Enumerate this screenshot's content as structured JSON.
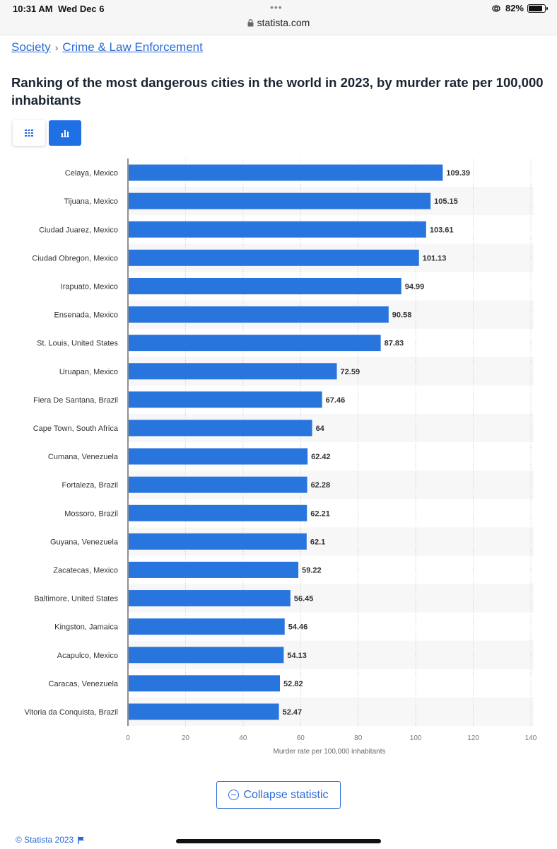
{
  "status_bar": {
    "time": "10:31 AM",
    "date": "Wed Dec 6",
    "url": "statista.com",
    "battery": "82%"
  },
  "breadcrumb": {
    "items": [
      "Society",
      "Crime & Law Enforcement"
    ],
    "separator": "›"
  },
  "title": "Ranking of the most dangerous cities in the world in 2023, by murder rate per 100,000 inhabitants",
  "view_toggle": {
    "options": [
      "table-icon",
      "bar-chart-icon"
    ],
    "active": "bar-chart-icon"
  },
  "chart_data": {
    "type": "bar",
    "orientation": "horizontal",
    "categories": [
      "Celaya, Mexico",
      "Tijuana, Mexico",
      "Ciudad Juarez, Mexico",
      "Ciudad Obregon, Mexico",
      "Irapuato, Mexico",
      "Ensenada, Mexico",
      "St. Louis, United States",
      "Uruapan, Mexico",
      "Fiera De Santana, Brazil",
      "Cape Town, South Africa",
      "Cumana, Venezuela",
      "Fortaleza, Brazil",
      "Mossoro, Brazil",
      "Guyana, Venezuela",
      "Zacatecas, Mexico",
      "Baltimore, United States",
      "Kingston, Jamaica",
      "Acapulco, Mexico",
      "Caracas, Venezuela",
      "Vitoria da Conquista, Brazil"
    ],
    "values": [
      109.39,
      105.15,
      103.61,
      101.13,
      94.99,
      90.58,
      87.83,
      72.59,
      67.46,
      64,
      62.42,
      62.28,
      62.21,
      62.1,
      59.22,
      56.45,
      54.46,
      54.13,
      52.82,
      52.47
    ],
    "value_labels": [
      "109.39",
      "105.15",
      "103.61",
      "101.13",
      "94.99",
      "90.58",
      "87.83",
      "72.59",
      "67.46",
      "64",
      "62.42",
      "62.28",
      "62.21",
      "62.1",
      "59.22",
      "56.45",
      "54.46",
      "54.13",
      "52.82",
      "52.47"
    ],
    "xlabel": "Murder rate per 100,000 inhabitants",
    "xlim": [
      0,
      140
    ],
    "xticks": [
      "0",
      "20",
      "40",
      "60",
      "80",
      "100",
      "120",
      "140"
    ],
    "bar_color": "#2875dd",
    "grid": true
  },
  "collapse_button": {
    "label": "Collapse statistic"
  },
  "footer": {
    "copyright": "© Statista 2023"
  }
}
